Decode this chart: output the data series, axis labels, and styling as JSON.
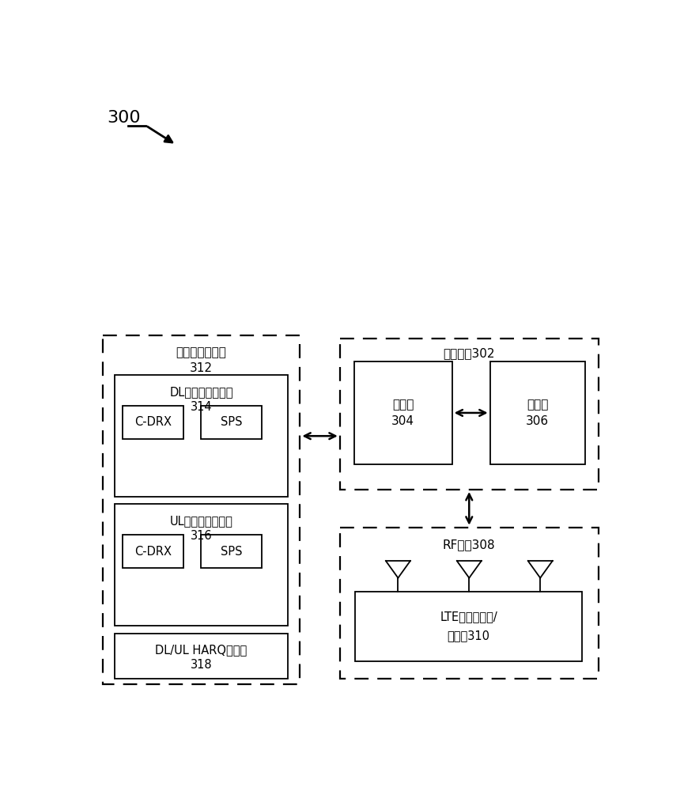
{
  "bg_color": "#ffffff",
  "label_300": "300",
  "lo_label1": "网络资源调度器",
  "lo_label2": "312",
  "dl_label1": "DL无线电资源分配",
  "dl_label2": "314",
  "ul_label1": "UL无线电资源分配",
  "ul_label2": "316",
  "harq_label1": "DL/UL HARQ调度器",
  "harq_label2": "318",
  "cdrx_label": "C-DRX",
  "sps_label": "SPS",
  "proc_label": "处理电路302",
  "p304_label1": "处理器",
  "p304_label2": "304",
  "m306_label1": "存储器",
  "m306_label2": "306",
  "rf_label": "RF电路308",
  "lte_label1": "LTE调制解调器/",
  "lte_label2": "收发器310",
  "font_zh": "DejaVu Sans"
}
